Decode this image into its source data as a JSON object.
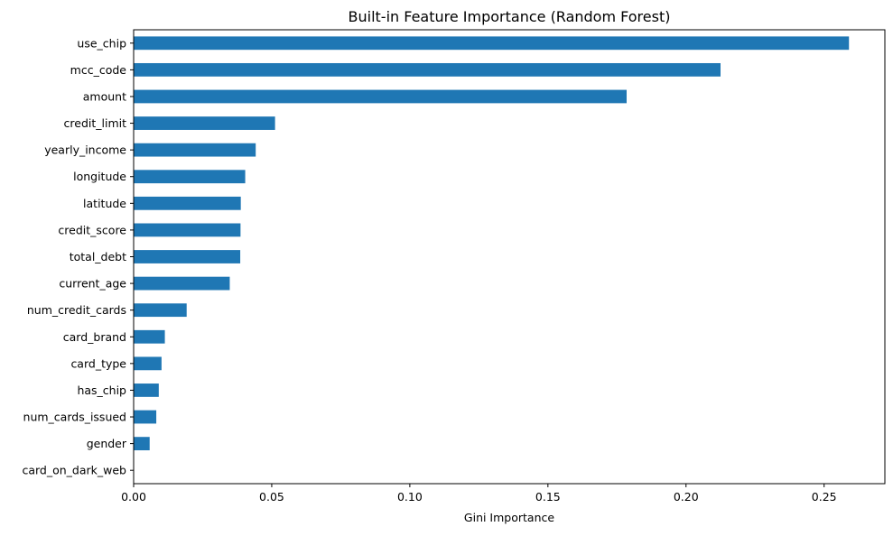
{
  "chart_data": {
    "type": "bar",
    "orientation": "horizontal",
    "title": "Built-in Feature Importance (Random Forest)",
    "xlabel": "Gini Importance",
    "ylabel": "",
    "xlim": [
      0,
      0.272
    ],
    "xticks": [
      0.0,
      0.05,
      0.1,
      0.15,
      0.2,
      0.25
    ],
    "xtick_labels": [
      "0.00",
      "0.05",
      "0.10",
      "0.15",
      "0.20",
      "0.25"
    ],
    "grid": false,
    "bar_color": "#1f77b4",
    "categories": [
      "use_chip",
      "mcc_code",
      "amount",
      "credit_limit",
      "yearly_income",
      "longitude",
      "latitude",
      "credit_score",
      "total_debt",
      "current_age",
      "num_credit_cards",
      "card_brand",
      "card_type",
      "has_chip",
      "num_cards_issued",
      "gender",
      "card_on_dark_web"
    ],
    "values": [
      0.259,
      0.2125,
      0.1785,
      0.0512,
      0.0442,
      0.0404,
      0.0388,
      0.0387,
      0.0386,
      0.0348,
      0.0192,
      0.0113,
      0.0101,
      0.0091,
      0.0082,
      0.0058,
      0.0
    ]
  }
}
